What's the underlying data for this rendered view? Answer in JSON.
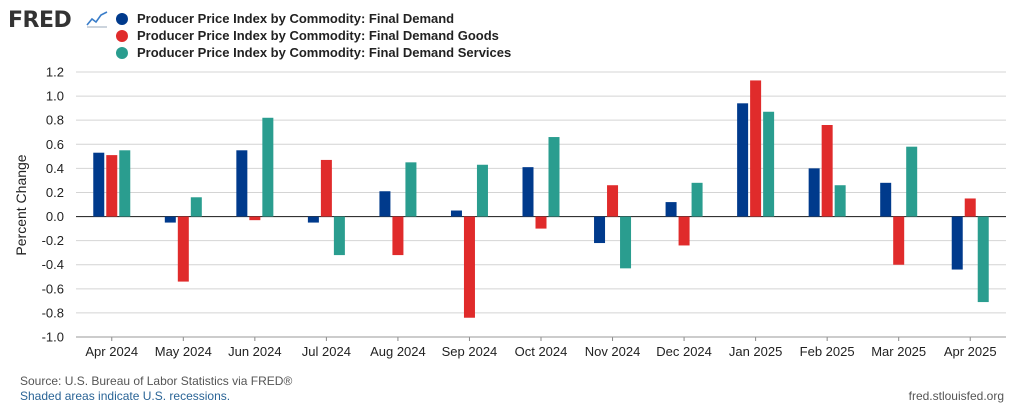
{
  "header": {
    "logo_text": "FRED",
    "logo_icon": "line-graph-icon"
  },
  "legend": [
    {
      "label": "Producer Price Index by Commodity: Final Demand",
      "color": "#003a8c"
    },
    {
      "label": "Producer Price Index by Commodity: Final Demand Goods",
      "color": "#e02b2b"
    },
    {
      "label": "Producer Price Index by Commodity: Final Demand Services",
      "color": "#2a9d8f"
    }
  ],
  "footer": {
    "source": "Source: U.S. Bureau of Labor Statistics via FRED®",
    "recessions": "Shaded areas indicate U.S. recessions.",
    "url": "fred.stlouisfed.org"
  },
  "chart_data": {
    "type": "bar",
    "ylabel": "Percent Change",
    "ylim": [
      -1.0,
      1.2
    ],
    "yticks": [
      "1.2",
      "1.0",
      "0.8",
      "0.6",
      "0.4",
      "0.2",
      "0.0",
      "-0.2",
      "-0.4",
      "-0.6",
      "-0.8",
      "-1.0"
    ],
    "grid": true,
    "categories": [
      "Apr 2024",
      "May 2024",
      "Jun 2024",
      "Jul 2024",
      "Aug 2024",
      "Sep 2024",
      "Oct 2024",
      "Nov 2024",
      "Dec 2024",
      "Jan 2025",
      "Feb 2025",
      "Mar 2025",
      "Apr 2025"
    ],
    "series": [
      {
        "name": "Producer Price Index by Commodity: Final Demand",
        "color": "#003a8c",
        "values": [
          0.53,
          -0.05,
          0.55,
          -0.05,
          0.21,
          0.05,
          0.41,
          -0.22,
          0.12,
          0.94,
          0.4,
          0.28,
          -0.44
        ]
      },
      {
        "name": "Producer Price Index by Commodity: Final Demand Goods",
        "color": "#e02b2b",
        "values": [
          0.51,
          -0.54,
          -0.03,
          0.47,
          -0.32,
          -0.84,
          -0.1,
          0.26,
          -0.24,
          1.13,
          0.76,
          -0.4,
          0.15
        ]
      },
      {
        "name": "Producer Price Index by Commodity: Final Demand Services",
        "color": "#2a9d8f",
        "values": [
          0.55,
          0.16,
          0.82,
          -0.32,
          0.45,
          0.43,
          0.66,
          -0.43,
          0.28,
          0.87,
          0.26,
          0.58,
          -0.71
        ]
      }
    ]
  }
}
